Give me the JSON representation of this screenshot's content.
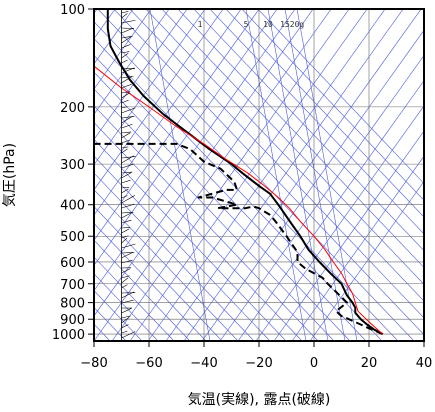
{
  "chart_data": {
    "type": "line",
    "xlabel": "気温(実線), 露点(破線)",
    "ylabel": "気圧(hPa)",
    "xlim": [
      -80,
      40
    ],
    "ylim": [
      1050,
      100
    ],
    "y_scale": "log",
    "x_ticks": [
      -80,
      -60,
      -40,
      -20,
      0,
      20,
      40
    ],
    "y_ticks": [
      100,
      200,
      300,
      400,
      500,
      600,
      700,
      800,
      900,
      1000
    ],
    "grid": true,
    "mixing_ratio_labels": [
      "1",
      "5",
      "10",
      "15",
      "20g"
    ],
    "series": [
      {
        "role": "temperature",
        "style": "solid",
        "color": "#000000",
        "points": [
          [
            25,
            1000
          ],
          [
            22,
            970
          ],
          [
            19,
            930
          ],
          [
            17,
            900
          ],
          [
            15,
            860
          ],
          [
            15,
            830
          ],
          [
            14,
            800
          ],
          [
            12,
            760
          ],
          [
            10,
            700
          ],
          [
            6,
            650
          ],
          [
            2,
            600
          ],
          [
            -2,
            550
          ],
          [
            -5,
            500
          ],
          [
            -8,
            460
          ],
          [
            -13,
            400
          ],
          [
            -16,
            370
          ],
          [
            -20,
            350
          ],
          [
            -26,
            320
          ],
          [
            -30,
            300
          ],
          [
            -38,
            270
          ],
          [
            -46,
            240
          ],
          [
            -55,
            210
          ],
          [
            -62,
            185
          ],
          [
            -67,
            165
          ],
          [
            -71,
            145
          ],
          [
            -74,
            130
          ],
          [
            -75,
            115
          ],
          [
            -75,
            100
          ]
        ]
      },
      {
        "role": "dew-point",
        "style": "dashed",
        "color": "#000000",
        "points": [
          [
            25,
            1000
          ],
          [
            20,
            960
          ],
          [
            14,
            910
          ],
          [
            10,
            880
          ],
          [
            8,
            850
          ],
          [
            12,
            800
          ],
          [
            10,
            770
          ],
          [
            5,
            700
          ],
          [
            3,
            670
          ],
          [
            -3,
            630
          ],
          [
            -6,
            600
          ],
          [
            -6,
            560
          ],
          [
            -10,
            500
          ],
          [
            -14,
            450
          ],
          [
            -16,
            430
          ],
          [
            -20,
            410
          ],
          [
            -22,
            405
          ],
          [
            -25,
            410
          ],
          [
            -35,
            410
          ],
          [
            -28,
            400
          ],
          [
            -37,
            380
          ],
          [
            -42,
            380
          ],
          [
            -32,
            360
          ],
          [
            -28,
            360
          ],
          [
            -29,
            340
          ],
          [
            -34,
            310
          ],
          [
            -40,
            295
          ],
          [
            -45,
            270
          ],
          [
            -50,
            260
          ],
          [
            -82,
            260
          ]
        ]
      },
      {
        "role": "parcel",
        "style": "solid",
        "color": "#ff0000",
        "points": [
          [
            25,
            1000
          ],
          [
            22,
            950
          ],
          [
            19,
            900
          ],
          [
            16,
            850
          ],
          [
            15,
            800
          ],
          [
            14,
            750
          ],
          [
            12,
            700
          ],
          [
            10,
            650
          ],
          [
            7,
            600
          ],
          [
            4,
            550
          ],
          [
            0,
            500
          ],
          [
            -5,
            450
          ],
          [
            -9,
            410
          ],
          [
            -13,
            380
          ],
          [
            -18,
            350
          ],
          [
            -24,
            320
          ],
          [
            -32,
            290
          ],
          [
            -40,
            260
          ],
          [
            -50,
            230
          ],
          [
            -60,
            200
          ],
          [
            -70,
            175
          ],
          [
            -80,
            150
          ]
        ]
      }
    ]
  }
}
